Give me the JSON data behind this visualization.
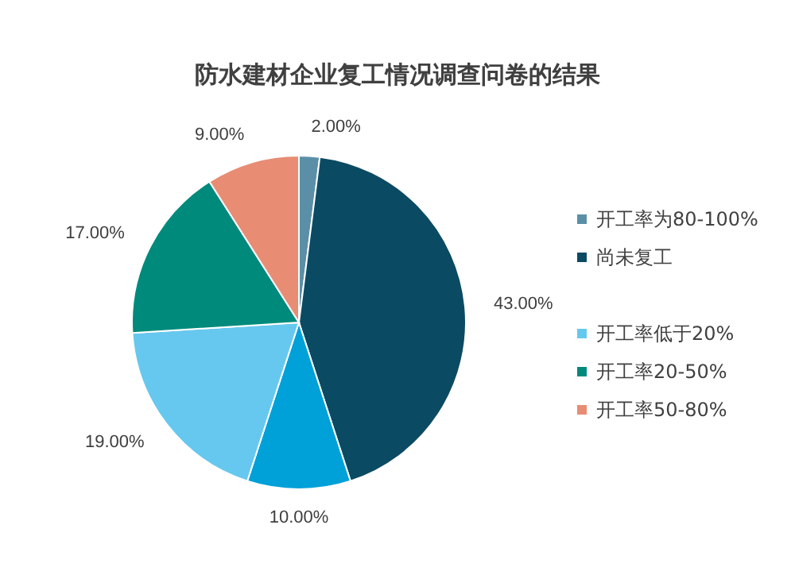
{
  "chart_data": {
    "type": "pie",
    "title": "防水建材企业复工情况调查问卷的结果",
    "categories": [
      "开工率为80-100%",
      "尚未复工",
      null,
      "开工率低于20%",
      "开工率20-50%",
      "开工率50-80%"
    ],
    "values": [
      2,
      43,
      10,
      19,
      17,
      9
    ],
    "value_labels": [
      "2.00%",
      "43.00%",
      "10.00%",
      "19.00%",
      "17.00%",
      "9.00%"
    ],
    "colors": [
      "#5b8fa8",
      "#0b4a63",
      "#00a0d8",
      "#66c8ee",
      "#008a7c",
      "#e88c74"
    ],
    "legend": "right"
  }
}
